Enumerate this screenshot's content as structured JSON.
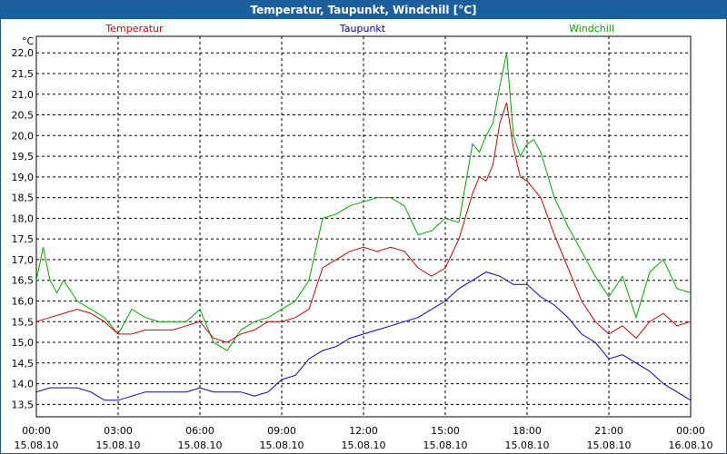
{
  "window": {
    "title": "Temperatur, Taupunkt, Windchill [°C]"
  },
  "colors": {
    "title_bar": "#1c5f9e",
    "temperatur": "#d40000",
    "taupunkt": "#0000c8",
    "windchill": "#00a800",
    "grid": "#000000"
  },
  "chart_data": {
    "type": "line",
    "title": "Temperatur, Taupunkt, Windchill [°C]",
    "ylabel": "°C",
    "xlabel": "",
    "ylim": [
      13.2,
      22.4
    ],
    "xlim": [
      0,
      24
    ],
    "grid": true,
    "legend_placement": "top",
    "yticks": [
      "13,5",
      "14,0",
      "14,5",
      "15,0",
      "15,5",
      "16,0",
      "16,5",
      "17,0",
      "17,5",
      "18,0",
      "18,5",
      "19,0",
      "19,5",
      "20,0",
      "20,5",
      "21,0",
      "21,5",
      "22,0"
    ],
    "xticks": [
      {
        "time": "00:00",
        "date": "15.08.10"
      },
      {
        "time": "03:00",
        "date": "15.08.10"
      },
      {
        "time": "06:00",
        "date": "15.08.10"
      },
      {
        "time": "09:00",
        "date": "15.08.10"
      },
      {
        "time": "12:00",
        "date": "15.08.10"
      },
      {
        "time": "15:00",
        "date": "15.08.10"
      },
      {
        "time": "18:00",
        "date": "15.08.10"
      },
      {
        "time": "21:00",
        "date": "15.08.10"
      },
      {
        "time": "00:00",
        "date": "16.08.10"
      }
    ],
    "series": [
      {
        "name": "Temperatur",
        "color": "#d40000",
        "x": [
          0,
          0.5,
          1,
          1.5,
          2,
          2.5,
          3,
          3.5,
          4,
          4.5,
          5,
          5.5,
          6,
          6.5,
          7,
          7.5,
          8,
          8.5,
          9,
          9.5,
          10,
          10.5,
          11,
          11.5,
          12,
          12.5,
          13,
          13.5,
          14,
          14.5,
          15,
          15.5,
          16,
          16.25,
          16.5,
          16.75,
          17,
          17.25,
          17.5,
          17.75,
          18,
          18.5,
          19,
          19.5,
          20,
          20.5,
          21,
          21.5,
          22,
          22.5,
          23,
          23.5,
          24
        ],
        "values": [
          15.5,
          15.6,
          15.7,
          15.8,
          15.7,
          15.5,
          15.2,
          15.2,
          15.3,
          15.3,
          15.3,
          15.4,
          15.5,
          15.1,
          15.0,
          15.2,
          15.3,
          15.5,
          15.5,
          15.6,
          15.8,
          16.8,
          17.0,
          17.2,
          17.3,
          17.2,
          17.3,
          17.2,
          16.8,
          16.6,
          16.8,
          17.5,
          18.6,
          19.0,
          18.9,
          19.3,
          20.3,
          20.8,
          19.7,
          19.0,
          18.9,
          18.5,
          17.6,
          16.8,
          16.0,
          15.5,
          15.2,
          15.4,
          15.1,
          15.5,
          15.7,
          15.4,
          15.5
        ]
      },
      {
        "name": "Taupunkt",
        "color": "#0000c8",
        "x": [
          0,
          0.5,
          1,
          1.5,
          2,
          2.5,
          3,
          3.5,
          4,
          4.5,
          5,
          5.5,
          6,
          6.5,
          7,
          7.5,
          8,
          8.5,
          9,
          9.5,
          10,
          10.5,
          11,
          11.5,
          12,
          12.5,
          13,
          13.5,
          14,
          14.5,
          15,
          15.5,
          16,
          16.5,
          17,
          17.5,
          18,
          18.5,
          19,
          19.5,
          20,
          20.5,
          21,
          21.5,
          22,
          22.5,
          23,
          23.5,
          24
        ],
        "values": [
          13.8,
          13.9,
          13.9,
          13.9,
          13.8,
          13.6,
          13.6,
          13.7,
          13.8,
          13.8,
          13.8,
          13.8,
          13.9,
          13.8,
          13.8,
          13.8,
          13.7,
          13.8,
          14.1,
          14.2,
          14.6,
          14.8,
          14.9,
          15.1,
          15.2,
          15.3,
          15.4,
          15.5,
          15.6,
          15.8,
          16.0,
          16.3,
          16.5,
          16.7,
          16.6,
          16.4,
          16.4,
          16.1,
          15.9,
          15.6,
          15.2,
          15.0,
          14.6,
          14.7,
          14.5,
          14.3,
          14.0,
          13.8,
          13.6
        ]
      },
      {
        "name": "Windchill",
        "color": "#00a800",
        "x": [
          0,
          0.25,
          0.5,
          0.75,
          1,
          1.5,
          2,
          2.5,
          3,
          3.5,
          4,
          4.5,
          5,
          5.5,
          6,
          6.5,
          7,
          7.5,
          8,
          8.5,
          9,
          9.5,
          10,
          10.5,
          11,
          11.5,
          12,
          12.5,
          13,
          13.5,
          14,
          14.5,
          15,
          15.5,
          16,
          16.25,
          16.5,
          16.75,
          17,
          17.25,
          17.5,
          17.75,
          18,
          18.25,
          18.5,
          19,
          19.5,
          20,
          20.5,
          21,
          21.5,
          22,
          22.5,
          23,
          23.5,
          24
        ],
        "values": [
          16.5,
          17.3,
          16.5,
          16.2,
          16.5,
          16.0,
          15.8,
          15.6,
          15.2,
          15.8,
          15.6,
          15.5,
          15.5,
          15.5,
          15.8,
          15.0,
          14.8,
          15.3,
          15.5,
          15.6,
          15.8,
          16.0,
          16.5,
          18.0,
          18.1,
          18.3,
          18.4,
          18.5,
          18.5,
          18.3,
          17.6,
          17.7,
          18.0,
          17.9,
          19.8,
          19.6,
          20.0,
          20.3,
          21.2,
          22.0,
          20.0,
          19.5,
          19.8,
          19.9,
          19.6,
          18.5,
          17.8,
          17.2,
          16.6,
          16.1,
          16.6,
          15.6,
          16.7,
          17.0,
          16.3,
          16.2
        ]
      }
    ]
  }
}
